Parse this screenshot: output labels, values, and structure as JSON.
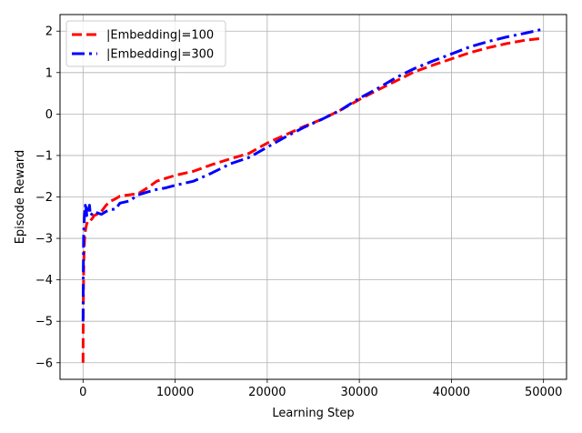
{
  "chart_data": {
    "type": "line",
    "title": "",
    "xlabel": "Learning Step",
    "ylabel": "Episode Reward",
    "xlim": [
      -2500,
      52500
    ],
    "ylim": [
      -6.4,
      2.4
    ],
    "xticks": [
      0,
      10000,
      20000,
      30000,
      40000,
      50000
    ],
    "yticks": [
      -6,
      -5,
      -4,
      -3,
      -2,
      -1,
      0,
      1,
      2
    ],
    "grid": true,
    "legend_position": "upper-left",
    "series": [
      {
        "name": "|Embedding|=100",
        "color": "#ff0000",
        "style": "dashed",
        "x": [
          0,
          10,
          30,
          60,
          100,
          150,
          200,
          300,
          400,
          500,
          600,
          700,
          800,
          1000,
          1200,
          1500,
          2000,
          2500,
          3000,
          3500,
          4000,
          5000,
          6000,
          7000,
          8000,
          9000,
          10000,
          12000,
          14000,
          16000,
          18000,
          20000,
          22000,
          24000,
          26000,
          28000,
          30000,
          32000,
          34000,
          36000,
          38000,
          40000,
          42000,
          44000,
          46000,
          48000,
          50000
        ],
        "y": [
          -6.0,
          -5.4,
          -4.6,
          -3.9,
          -3.4,
          -3.1,
          -2.9,
          -2.75,
          -2.65,
          -2.6,
          -2.58,
          -2.55,
          -2.57,
          -2.52,
          -2.45,
          -2.42,
          -2.35,
          -2.2,
          -2.1,
          -2.05,
          -1.98,
          -1.95,
          -1.92,
          -1.78,
          -1.62,
          -1.55,
          -1.48,
          -1.38,
          -1.22,
          -1.08,
          -0.95,
          -0.7,
          -0.5,
          -0.3,
          -0.12,
          0.1,
          0.35,
          0.58,
          0.8,
          1.02,
          1.18,
          1.33,
          1.48,
          1.6,
          1.7,
          1.78,
          1.83
        ]
      },
      {
        "name": "|Embedding|=300",
        "color": "#0000ff",
        "style": "dashdot",
        "x": [
          0,
          10,
          30,
          60,
          100,
          150,
          200,
          250,
          300,
          350,
          400,
          500,
          600,
          700,
          800,
          1000,
          1200,
          1500,
          2000,
          2500,
          3000,
          3500,
          4000,
          5000,
          6000,
          7000,
          8000,
          9000,
          10000,
          12000,
          14000,
          16000,
          18000,
          20000,
          22000,
          24000,
          26000,
          28000,
          30000,
          32000,
          34000,
          36000,
          38000,
          40000,
          42000,
          44000,
          46000,
          48000,
          50000
        ],
        "y": [
          -5.0,
          -4.6,
          -3.8,
          -3.0,
          -2.7,
          -2.45,
          -2.3,
          -2.2,
          -2.35,
          -2.25,
          -2.45,
          -2.3,
          -2.4,
          -2.2,
          -2.45,
          -2.4,
          -2.35,
          -2.38,
          -2.42,
          -2.35,
          -2.3,
          -2.3,
          -2.15,
          -2.1,
          -1.95,
          -1.88,
          -1.82,
          -1.78,
          -1.72,
          -1.62,
          -1.42,
          -1.2,
          -1.05,
          -0.8,
          -0.55,
          -0.32,
          -0.12,
          0.1,
          0.38,
          0.62,
          0.88,
          1.1,
          1.28,
          1.45,
          1.62,
          1.75,
          1.86,
          1.95,
          2.05
        ]
      }
    ]
  }
}
